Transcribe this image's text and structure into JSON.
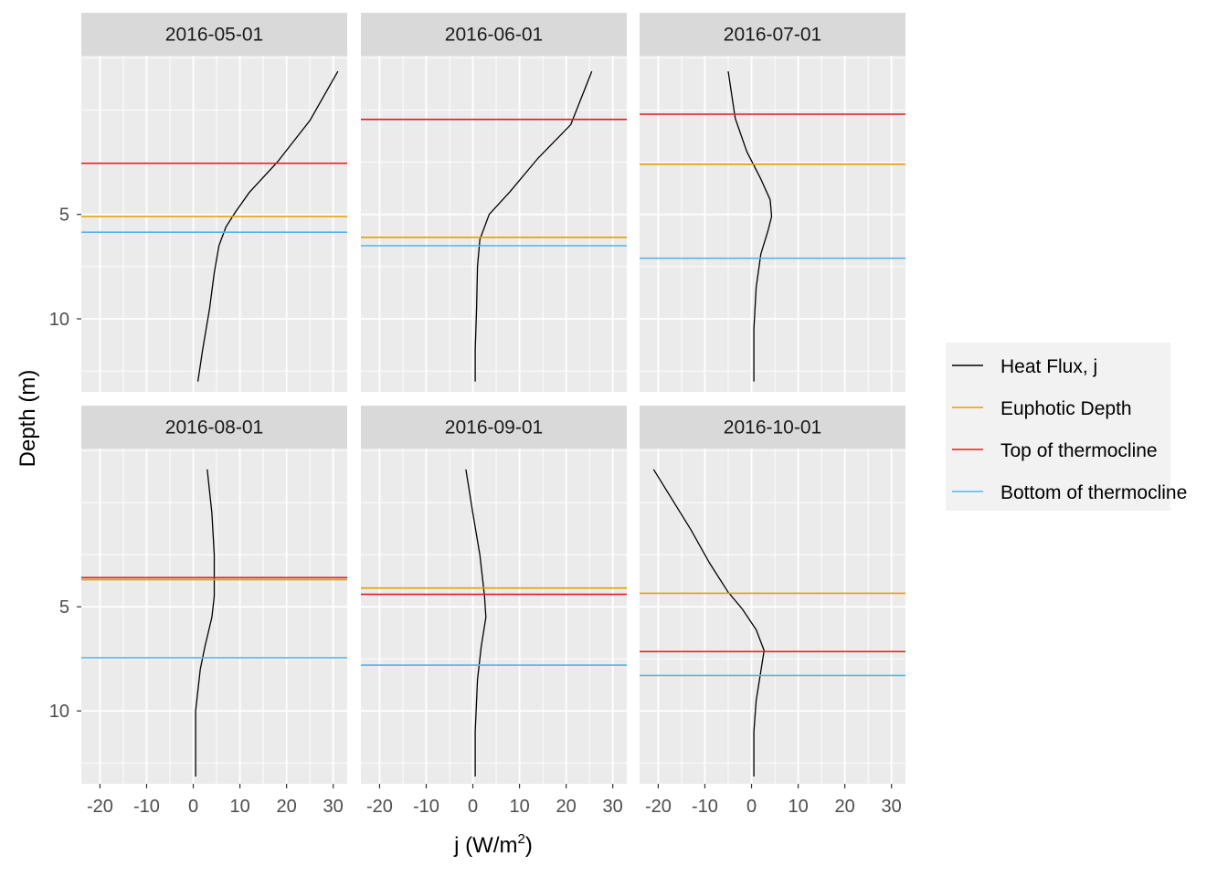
{
  "chart_data": {
    "type": "line",
    "xlabel_main": "j (W/m",
    "xlabel_sup": "2",
    "xlabel_end": ")",
    "ylabel": "Depth (m)",
    "xlim": [
      -24,
      33
    ],
    "ylim": [
      13.5,
      -2.6
    ],
    "x_ticks": [
      -20,
      -10,
      0,
      10,
      20,
      30
    ],
    "x_tick_labels": [
      "-20",
      "-10",
      "0",
      "10",
      "20",
      "30"
    ],
    "y_ticks": [
      5,
      10
    ],
    "y_tick_labels": [
      "5",
      "10"
    ],
    "legend": [
      {
        "name": "Heat Flux, j",
        "color": "#000000"
      },
      {
        "name": "Euphotic Depth",
        "color": "#E69F00"
      },
      {
        "name": "Top of thermocline",
        "color": "#E41A1C"
      },
      {
        "name": "Bottom of thermocline",
        "color": "#56B4E9"
      }
    ],
    "panels": [
      {
        "title": "2016-05-01",
        "euphotic": 5.1,
        "top_thermocline": 2.55,
        "bottom_thermocline": 5.85,
        "flux": [
          [
            31,
            -1.85
          ],
          [
            25,
            0.5
          ],
          [
            18,
            2.5
          ],
          [
            12,
            3.95
          ],
          [
            9,
            4.9
          ],
          [
            7,
            5.6
          ],
          [
            5.5,
            6.5
          ],
          [
            4.5,
            7.8
          ],
          [
            3.5,
            9.5
          ],
          [
            2,
            11.5
          ],
          [
            1,
            13
          ]
        ]
      },
      {
        "title": "2016-06-01",
        "euphotic": 6.1,
        "top_thermocline": 0.45,
        "bottom_thermocline": 6.5,
        "flux": [
          [
            25.5,
            -1.85
          ],
          [
            21,
            0.7
          ],
          [
            14,
            2.3
          ],
          [
            8,
            3.9
          ],
          [
            3.5,
            5
          ],
          [
            1.5,
            6.2
          ],
          [
            1,
            7.5
          ],
          [
            0.8,
            9.5
          ],
          [
            0.5,
            11.5
          ],
          [
            0.5,
            13
          ]
        ]
      },
      {
        "title": "2016-07-01",
        "euphotic": 2.6,
        "top_thermocline": 0.2,
        "bottom_thermocline": 7.1,
        "flux": [
          [
            -5,
            -1.85
          ],
          [
            -3.5,
            0.4
          ],
          [
            -1,
            2
          ],
          [
            2,
            3.3
          ],
          [
            4,
            4.3
          ],
          [
            4.3,
            5.1
          ],
          [
            3.5,
            5.8
          ],
          [
            2,
            6.9
          ],
          [
            1,
            8.5
          ],
          [
            0.5,
            10.5
          ],
          [
            0.5,
            13
          ]
        ]
      },
      {
        "title": "2016-08-01",
        "euphotic": 3.7,
        "top_thermocline": 3.6,
        "bottom_thermocline": 7.45,
        "flux": [
          [
            3,
            -1.6
          ],
          [
            4,
            0.5
          ],
          [
            4.5,
            2.5
          ],
          [
            4.5,
            4.5
          ],
          [
            4,
            5.5
          ],
          [
            2.5,
            6.9
          ],
          [
            1.5,
            8
          ],
          [
            0.5,
            10
          ],
          [
            0.5,
            11.5
          ],
          [
            0.5,
            13.15
          ]
        ]
      },
      {
        "title": "2016-09-01",
        "euphotic": 4.1,
        "top_thermocline": 4.4,
        "bottom_thermocline": 7.8,
        "flux": [
          [
            -1.5,
            -1.6
          ],
          [
            0,
            0.5
          ],
          [
            1.5,
            2.5
          ],
          [
            2.5,
            4.5
          ],
          [
            2.8,
            5.5
          ],
          [
            1.8,
            6.9
          ],
          [
            1,
            8.5
          ],
          [
            0.5,
            11
          ],
          [
            0.5,
            13.15
          ]
        ]
      },
      {
        "title": "2016-10-01",
        "euphotic": 4.35,
        "top_thermocline": 7.15,
        "bottom_thermocline": 8.3,
        "flux": [
          [
            -21,
            -1.6
          ],
          [
            -13,
            1.3
          ],
          [
            -9,
            2.9
          ],
          [
            -5,
            4.3
          ],
          [
            -2,
            5.1
          ],
          [
            1,
            6.1
          ],
          [
            2.7,
            7.1
          ],
          [
            2,
            8.1
          ],
          [
            1,
            9.5
          ],
          [
            0.5,
            11
          ],
          [
            0.5,
            13.15
          ]
        ]
      }
    ]
  }
}
